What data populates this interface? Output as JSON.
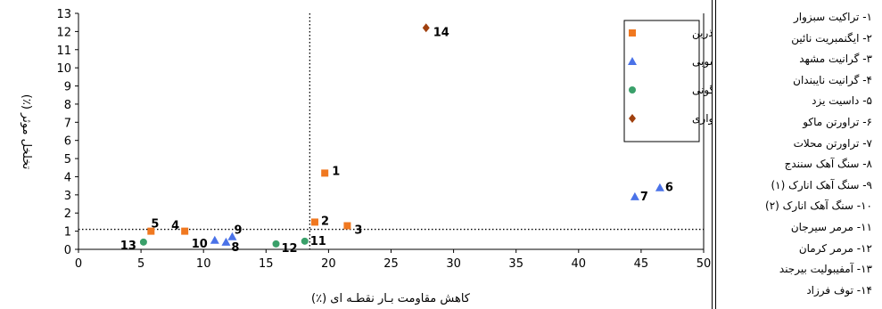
{
  "chart_data": {
    "type": "scatter",
    "xlabel": "کاهش مقاومت بـار نقطـه ای (٪)",
    "ylabel": "تخلخل موثر (٪)",
    "xlim": [
      0,
      50
    ],
    "ylim": [
      0,
      13
    ],
    "x_ticks": [
      0,
      5,
      10,
      15,
      20,
      25,
      30,
      35,
      40,
      45,
      50
    ],
    "y_ticks": [
      0,
      1,
      2,
      3,
      4,
      5,
      6,
      7,
      8,
      9,
      10,
      11,
      12,
      13
    ],
    "grid": false,
    "reference_lines": {
      "x": 18.5,
      "y": 1.1,
      "style": "dotted"
    },
    "legend_position": "top-right",
    "series": [
      {
        "name": "آذرین",
        "marker": "square",
        "color": "#f07820",
        "points": [
          {
            "label": "1",
            "x": 19.7,
            "y": 4.2
          },
          {
            "label": "2",
            "x": 18.9,
            "y": 1.5
          },
          {
            "label": "3",
            "x": 21.5,
            "y": 1.3
          },
          {
            "label": "4",
            "x": 8.5,
            "y": 1.0
          },
          {
            "label": "5",
            "x": 5.8,
            "y": 1.0
          }
        ]
      },
      {
        "name": "رسوبی",
        "marker": "triangle",
        "color": "#4a72e8",
        "points": [
          {
            "label": "6",
            "x": 46.5,
            "y": 3.4
          },
          {
            "label": "7",
            "x": 44.5,
            "y": 2.9
          },
          {
            "label": "8",
            "x": 11.8,
            "y": 0.4
          },
          {
            "label": "9",
            "x": 12.3,
            "y": 0.7
          },
          {
            "label": "10",
            "x": 10.9,
            "y": 0.5
          }
        ]
      },
      {
        "name": "دگرگونی",
        "marker": "circle",
        "color": "#3aa06a",
        "points": [
          {
            "label": "11",
            "x": 18.1,
            "y": 0.45
          },
          {
            "label": "12",
            "x": 15.8,
            "y": 0.3
          },
          {
            "label": "13",
            "x": 5.2,
            "y": 0.4
          }
        ]
      },
      {
        "name": "آذرآواری",
        "marker": "diamond",
        "color": "#a0400e",
        "points": [
          {
            "label": "14",
            "x": 27.8,
            "y": 12.2
          }
        ]
      }
    ]
  },
  "rock_list": [
    "۱- تراکیت سبزوار",
    "۲- ایگنمبریت نائین",
    "۳- گرانیت مشهد",
    "۴- گرانیت نایبندان",
    "۵- داسیت یزد",
    "۶- تراورتن ماکو",
    "۷- تراورتن محلات",
    "۸- سنگ آهک سنندج",
    "۹- سنگ آهک انارک (۱)",
    "۱۰- سنگ آهک انارک (۲)",
    "۱۱- مرمر سیرجان",
    "۱۲- مرمر کرمان",
    "۱۳- آمفیبولیت بیرجند",
    "۱۴- توف فرزاد"
  ]
}
